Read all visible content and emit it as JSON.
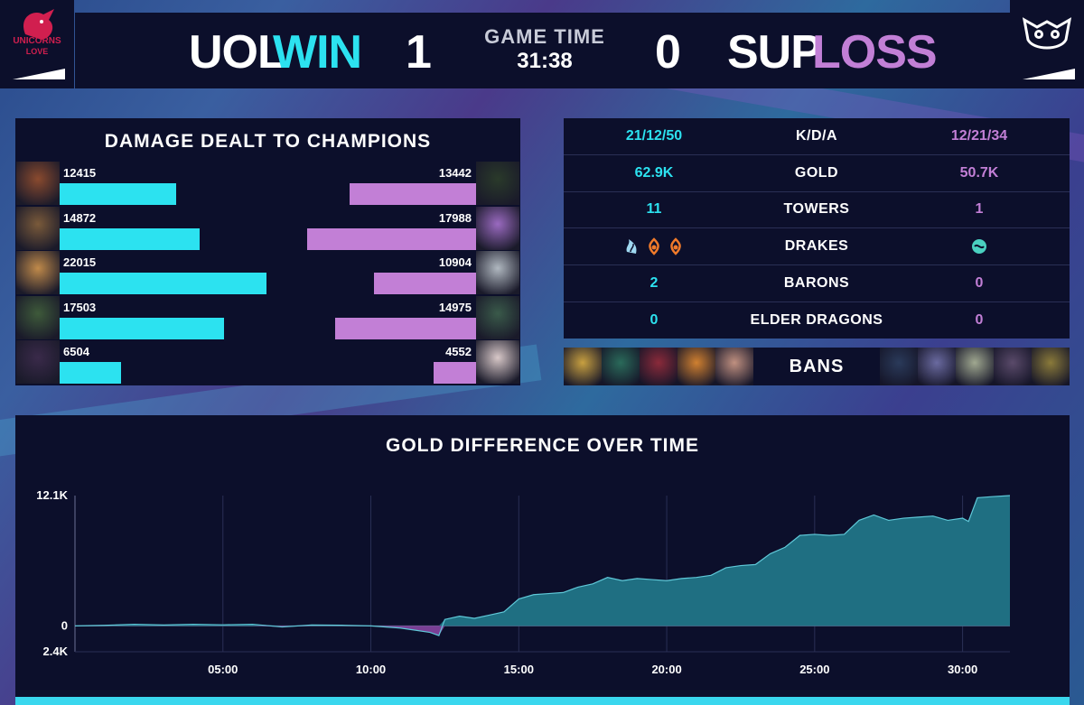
{
  "header": {
    "left_team": "UOL",
    "left_result": "WIN",
    "left_score": "1",
    "game_time_label": "GAME TIME",
    "game_time": "31:38",
    "right_score": "0",
    "right_team": "SUP",
    "right_result": "LOSS",
    "left_logo_text": [
      "UNICORNS",
      "LOVE"
    ]
  },
  "damage": {
    "title": "DAMAGE DEALT TO CHAMPIONS",
    "max": 22015,
    "left": [
      {
        "value": "12415",
        "num": 12415
      },
      {
        "value": "14872",
        "num": 14872
      },
      {
        "value": "22015",
        "num": 22015
      },
      {
        "value": "17503",
        "num": 17503
      },
      {
        "value": "6504",
        "num": 6504
      }
    ],
    "right": [
      {
        "value": "13442",
        "num": 13442
      },
      {
        "value": "17988",
        "num": 17988
      },
      {
        "value": "10904",
        "num": 10904
      },
      {
        "value": "14975",
        "num": 14975
      },
      {
        "value": "4552",
        "num": 4552
      }
    ]
  },
  "stats": [
    {
      "left": "21/12/50",
      "label": "K/D/A",
      "right": "12/21/34"
    },
    {
      "left": "62.9K",
      "label": "GOLD",
      "right": "50.7K"
    },
    {
      "left": "11",
      "label": "TOWERS",
      "right": "1"
    },
    {
      "left": "",
      "label": "DRAKES",
      "right": ""
    },
    {
      "left": "2",
      "label": "BARONS",
      "right": "0"
    },
    {
      "left": "0",
      "label": "ELDER DRAGONS",
      "right": "0"
    }
  ],
  "drakes": {
    "left": [
      "cloud-drake-icon",
      "infernal-drake-icon",
      "infernal-drake-icon"
    ],
    "right": [
      "ocean-drake-icon"
    ]
  },
  "bans": {
    "label": "BANS"
  },
  "colors": {
    "uol": "#2ce2f0",
    "sup": "#c27fd6",
    "panel": "#0c0f2b"
  },
  "chart_data": {
    "type": "area",
    "title": "GOLD DIFFERENCE OVER TIME",
    "xlabel": "",
    "ylabel": "",
    "x_ticks": [
      "05:00",
      "10:00",
      "15:00",
      "20:00",
      "25:00",
      "30:00"
    ],
    "y_ticks": [
      "12.1K",
      "0",
      "2.4K"
    ],
    "xlim": [
      0,
      31.6
    ],
    "ylim": [
      -2400,
      12100
    ],
    "series": [
      {
        "x": [
          0,
          1,
          2,
          3,
          4,
          5,
          6,
          7,
          8,
          9,
          10,
          11,
          11.5,
          12,
          12.3,
          12.5,
          13,
          13.5,
          14,
          14.5,
          15,
          15.5,
          16,
          16.5,
          17,
          17.5,
          18,
          18.5,
          19,
          19.5,
          20,
          20.5,
          21,
          21.5,
          22,
          22.5,
          23,
          23.5,
          24,
          24.5,
          25,
          25.5,
          26,
          26.5,
          27,
          27.5,
          28,
          28.5,
          29,
          29.5,
          30,
          30.2,
          30.5,
          31,
          31.6
        ],
        "y": [
          0,
          50,
          150,
          80,
          150,
          100,
          150,
          -100,
          80,
          60,
          0,
          -200,
          -400,
          -600,
          -900,
          600,
          900,
          700,
          1000,
          1300,
          2500,
          2900,
          3000,
          3100,
          3600,
          3900,
          4500,
          4200,
          4400,
          4300,
          4200,
          4400,
          4500,
          4700,
          5400,
          5600,
          5700,
          6700,
          7300,
          8400,
          8500,
          8400,
          8500,
          9800,
          10300,
          9800,
          10000,
          10100,
          10200,
          9800,
          10000,
          9700,
          11900,
          12000,
          12100
        ]
      }
    ]
  }
}
